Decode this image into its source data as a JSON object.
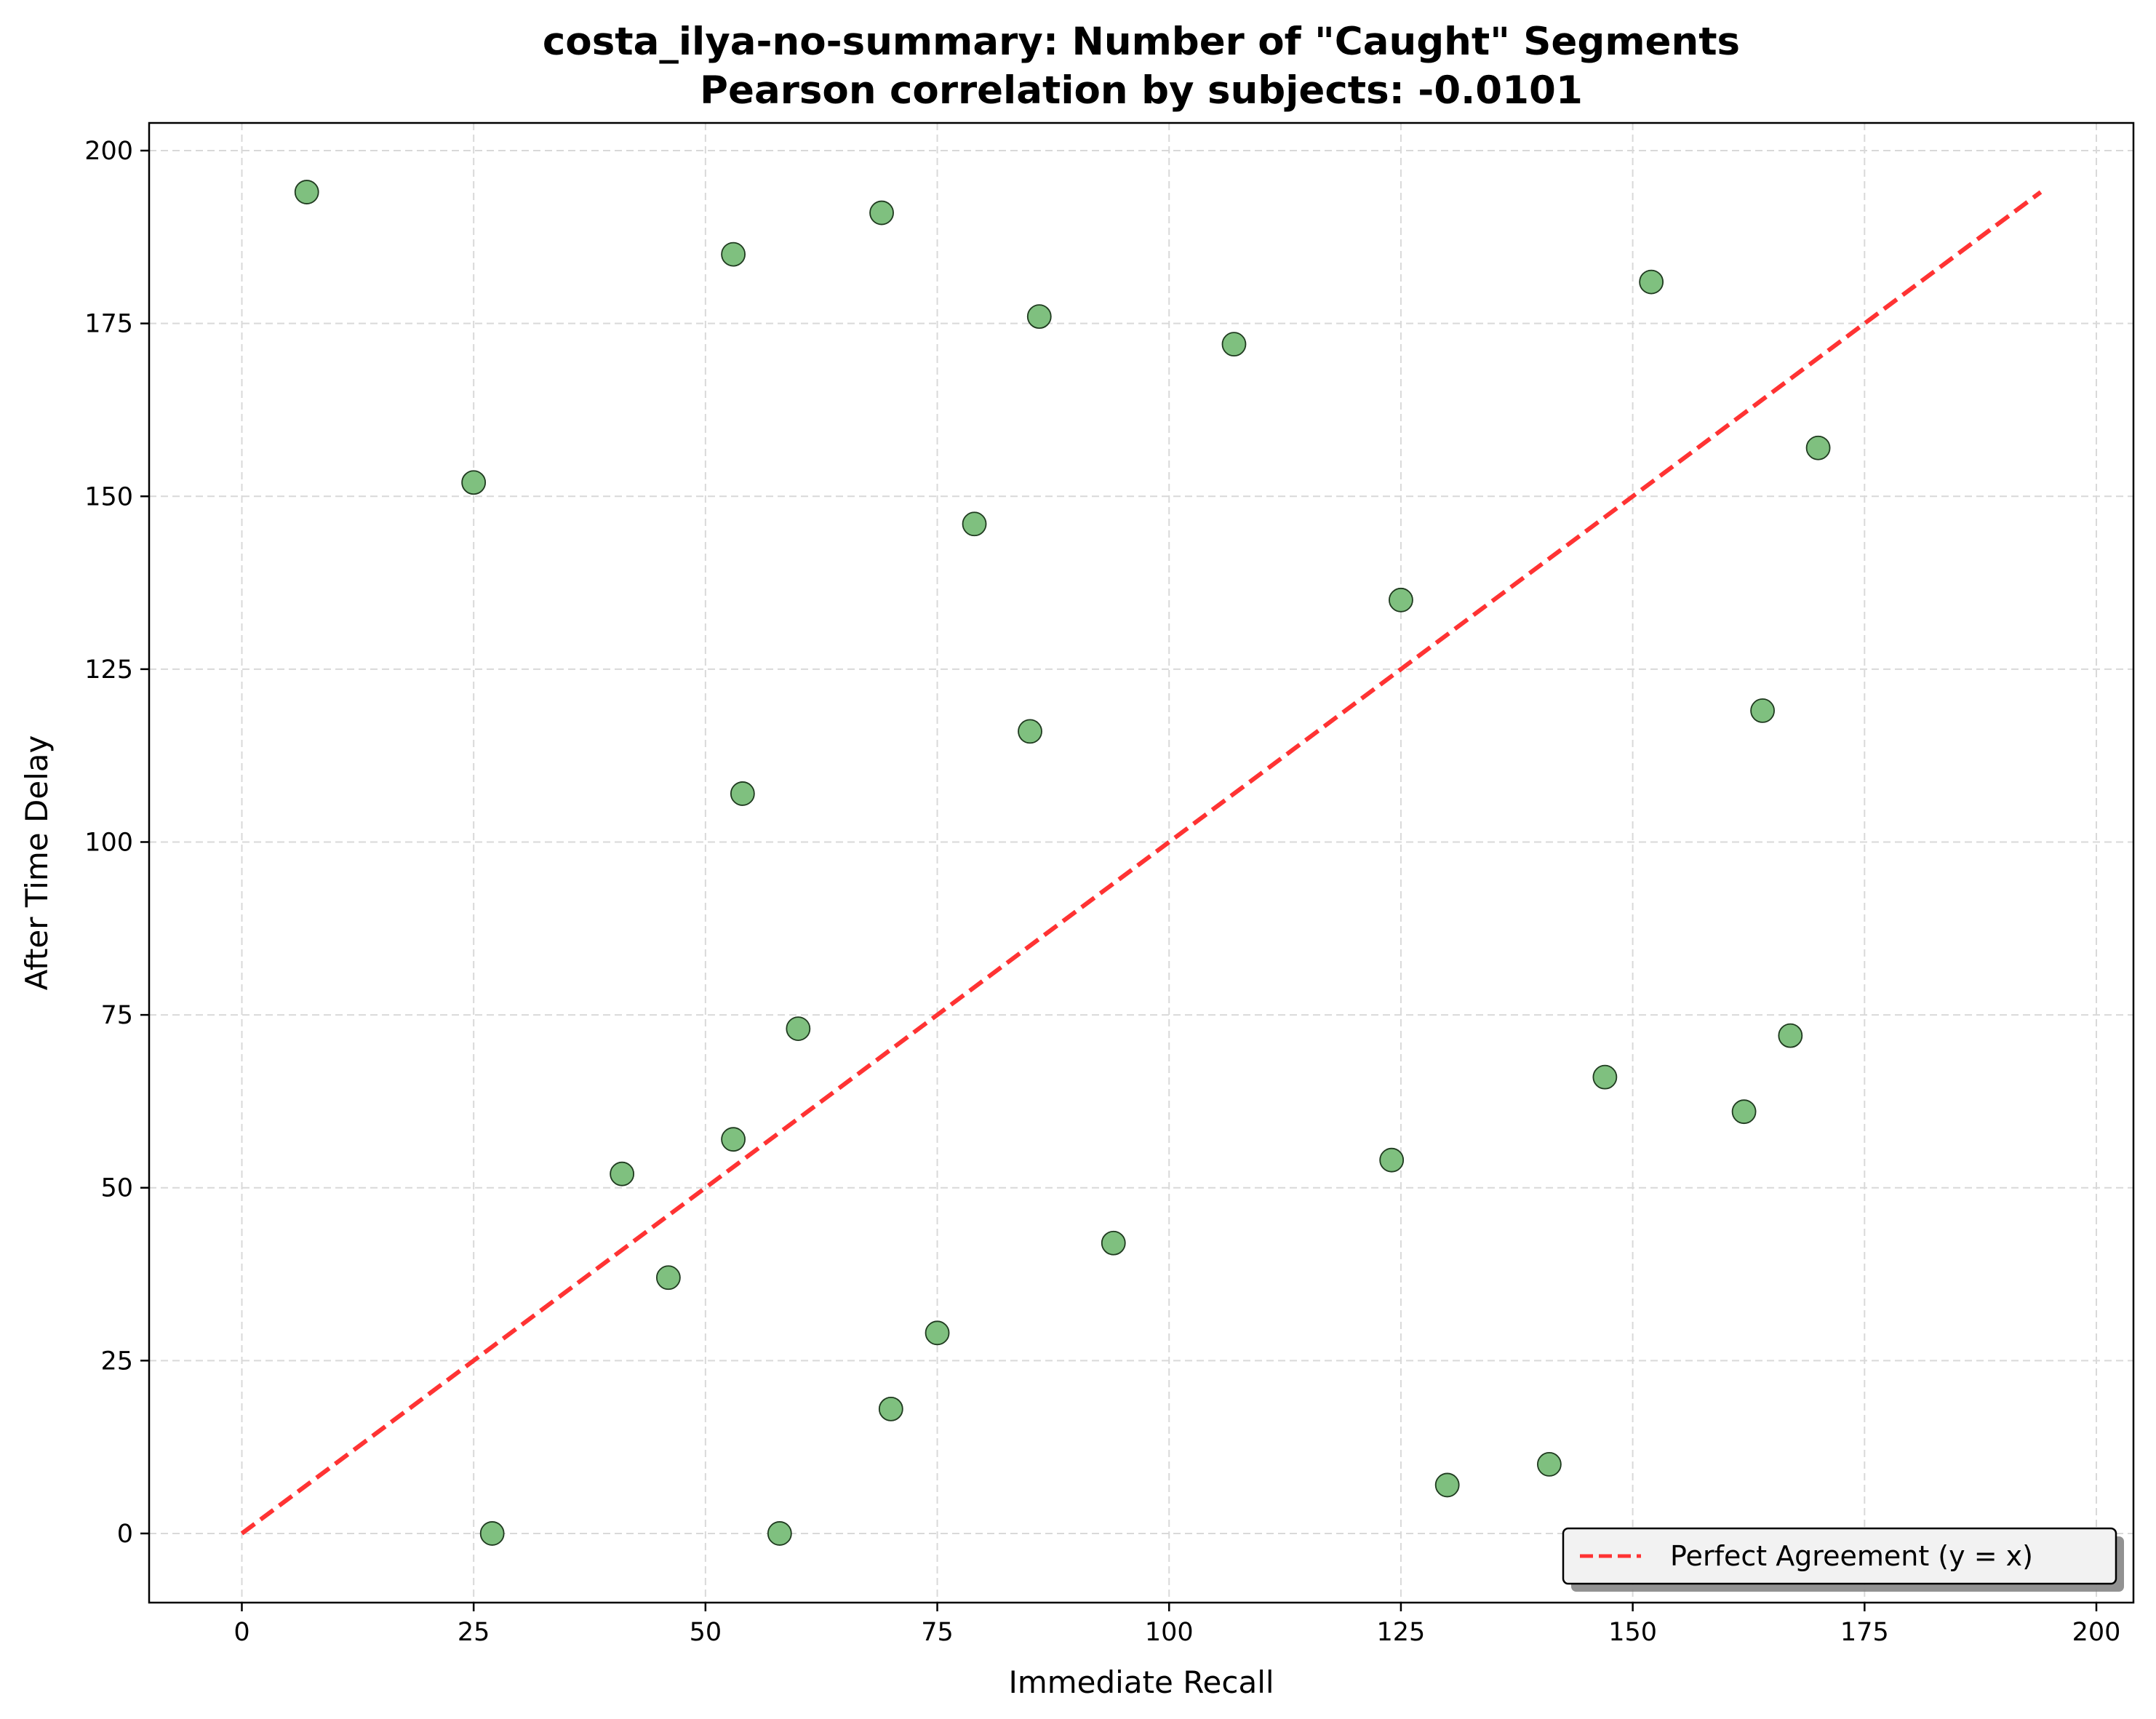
{
  "chart_data": {
    "type": "scatter",
    "title_line1": "costa_ilya-no-summary: Number of \"Caught\" Segments",
    "title_line2": "Pearson correlation by subjects: -0.0101",
    "xlabel": "Immediate Recall",
    "ylabel": "After Time Delay",
    "xlim": [
      -10,
      204
    ],
    "ylim": [
      -10,
      204
    ],
    "xticks": [
      0,
      25,
      50,
      75,
      100,
      125,
      150,
      175,
      200
    ],
    "yticks": [
      0,
      25,
      50,
      75,
      100,
      125,
      150,
      175,
      200
    ],
    "grid": true,
    "legend_position": "bottom-right",
    "series": [
      {
        "kind": "points",
        "color": "#7fc07f",
        "edge_color": "#1f3a1f",
        "points": [
          {
            "x": 7,
            "y": 194
          },
          {
            "x": 53,
            "y": 185
          },
          {
            "x": 69,
            "y": 191
          },
          {
            "x": 86,
            "y": 176
          },
          {
            "x": 107,
            "y": 172
          },
          {
            "x": 152,
            "y": 181
          },
          {
            "x": 25,
            "y": 152
          },
          {
            "x": 79,
            "y": 146
          },
          {
            "x": 170,
            "y": 157
          },
          {
            "x": 125,
            "y": 135
          },
          {
            "x": 85,
            "y": 116
          },
          {
            "x": 164,
            "y": 119
          },
          {
            "x": 54,
            "y": 107
          },
          {
            "x": 60,
            "y": 73
          },
          {
            "x": 167,
            "y": 72
          },
          {
            "x": 147,
            "y": 66
          },
          {
            "x": 162,
            "y": 61
          },
          {
            "x": 53,
            "y": 57
          },
          {
            "x": 41,
            "y": 52
          },
          {
            "x": 124,
            "y": 54
          },
          {
            "x": 94,
            "y": 42
          },
          {
            "x": 46,
            "y": 37
          },
          {
            "x": 75,
            "y": 29
          },
          {
            "x": 70,
            "y": 18
          },
          {
            "x": 141,
            "y": 10
          },
          {
            "x": 130,
            "y": 7
          },
          {
            "x": 27,
            "y": 0
          },
          {
            "x": 58,
            "y": 0
          }
        ]
      },
      {
        "kind": "line",
        "name": "Perfect Agreement (y = x)",
        "color": "#ff3333",
        "dashed": true,
        "x": [
          0,
          194
        ],
        "y": [
          0,
          194
        ]
      }
    ]
  }
}
